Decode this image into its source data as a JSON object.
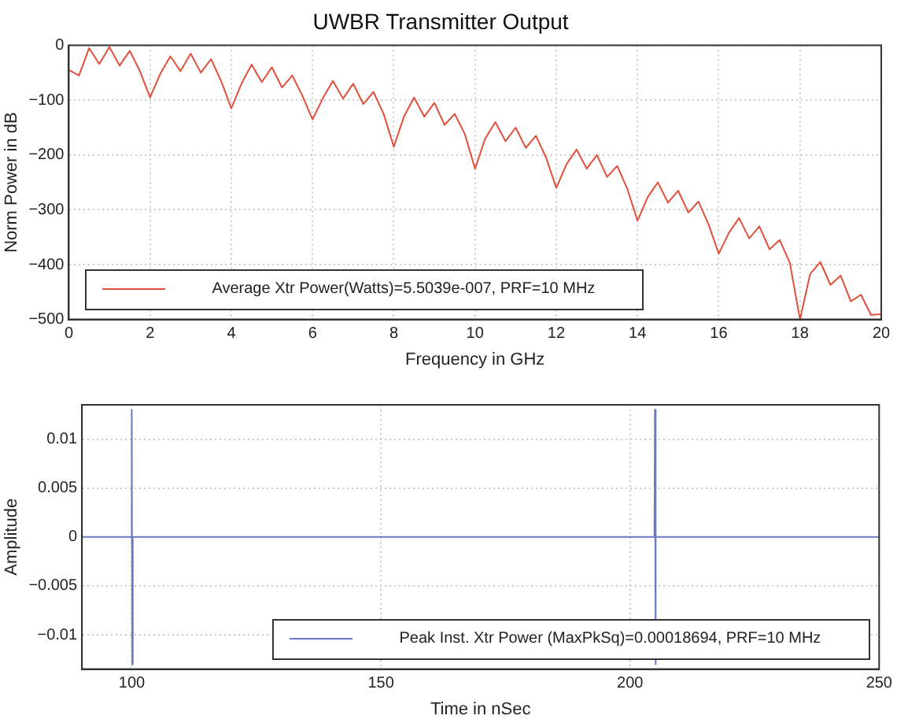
{
  "chart_data": [
    {
      "type": "line",
      "title": "UWBR Transmitter Output",
      "xlabel": "Frequency in GHz",
      "ylabel": "Norm Power in dB",
      "xlim": [
        0,
        20
      ],
      "xticks": [
        0,
        2,
        4,
        6,
        8,
        10,
        12,
        14,
        16,
        18,
        20
      ],
      "ylim": [
        -500,
        0
      ],
      "yticks": [
        -500,
        -400,
        -300,
        -200,
        -100,
        0
      ],
      "grid": true,
      "legend": "bottom left",
      "x": [
        0,
        0.25,
        0.5,
        0.75,
        1,
        1.25,
        1.5,
        1.75,
        2,
        2.25,
        2.5,
        2.75,
        3,
        3.25,
        3.5,
        3.75,
        4,
        4.25,
        4.5,
        4.75,
        5,
        5.25,
        5.5,
        5.75,
        6,
        6.25,
        6.5,
        6.75,
        7,
        7.25,
        7.5,
        7.75,
        8,
        8.25,
        8.5,
        8.75,
        9,
        9.25,
        9.5,
        9.75,
        10,
        10.25,
        10.5,
        10.75,
        11,
        11.25,
        11.5,
        11.75,
        12,
        12.25,
        12.5,
        12.75,
        13,
        13.25,
        13.5,
        13.75,
        14,
        14.25,
        14.5,
        14.75,
        15,
        15.25,
        15.5,
        15.75,
        16,
        16.25,
        16.5,
        16.75,
        17,
        17.25,
        17.5,
        17.75,
        18,
        18.25,
        18.5,
        18.75,
        19,
        19.25,
        19.5,
        19.75,
        20
      ],
      "series": [
        {
          "name": "Average Xtr Power(Watts)=5.5039e-007, PRF=10 MHz",
          "color": "#e0503c",
          "values": [
            -45,
            -55,
            -5,
            -34,
            -3,
            -37,
            -10,
            -47,
            -95,
            -52,
            -20,
            -47,
            -15,
            -50,
            -25,
            -65,
            -115,
            -70,
            -35,
            -67,
            -40,
            -77,
            -55,
            -92,
            -135,
            -97,
            -65,
            -97,
            -70,
            -107,
            -85,
            -125,
            -185,
            -130,
            -95,
            -130,
            -105,
            -145,
            -125,
            -162,
            -225,
            -170,
            -140,
            -175,
            -150,
            -187,
            -165,
            -205,
            -260,
            -217,
            -190,
            -225,
            -200,
            -240,
            -220,
            -262,
            -320,
            -277,
            -250,
            -287,
            -265,
            -305,
            -285,
            -327,
            -380,
            -342,
            -315,
            -352,
            -330,
            -372,
            -355,
            -397,
            -500,
            -417,
            -395,
            -437,
            -420,
            -467,
            -455,
            -492,
            -490
          ]
        }
      ]
    },
    {
      "type": "line",
      "xlabel": "Time in nSec",
      "ylabel": "Amplitude",
      "xlim": [
        90,
        250
      ],
      "xticks": [
        100,
        150,
        200,
        250
      ],
      "ylim": [
        -0.0135,
        0.0135
      ],
      "yticks": [
        -0.01,
        -0.005,
        0,
        0.005,
        0.01
      ],
      "grid": true,
      "legend": "bottom right",
      "x": [
        90,
        99.9,
        100,
        100.1,
        100.2,
        204.9,
        205,
        205.1,
        205.2,
        250
      ],
      "series": [
        {
          "name": "Peak Inst. Xtr Power (MaxPkSq)=0.00018694, PRF=10 MHz",
          "color": "#6a7bc4",
          "values": [
            0,
            0,
            0.013,
            -0.013,
            0,
            0,
            0.013,
            -0.013,
            0,
            0
          ]
        }
      ]
    }
  ]
}
